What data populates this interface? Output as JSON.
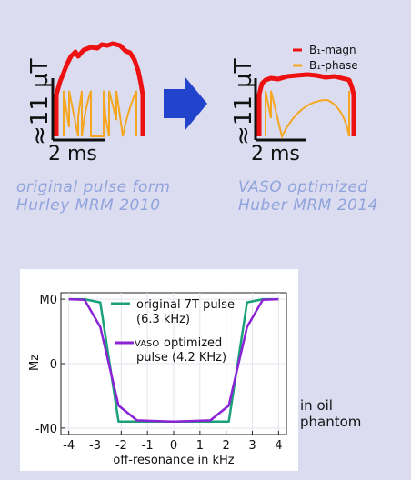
{
  "left_panel": {
    "scale_label": "≈11 µT",
    "time_label": "2 ms",
    "caption_line1": "original pulse form",
    "caption_line2": "Hurley MRM 2010"
  },
  "right_panel": {
    "scale_label": "≈11 µT",
    "time_label": "2 ms",
    "caption_line1": "VASO optimized",
    "caption_line2": "Huber MRM 2014",
    "legend": [
      {
        "label": "B₁-magn",
        "color": "#ee1111"
      },
      {
        "label": "B₁-phase",
        "color": "#f5a623"
      }
    ]
  },
  "arrow": {
    "color": "#2244cc",
    "icon": "right-arrow"
  },
  "note": {
    "line1": "in oil",
    "line2": "phantom"
  },
  "chart_data": {
    "type": "line",
    "xlabel": "off-resonance in kHz",
    "ylabel": "Mz",
    "xlim": [
      -4.3,
      4.3
    ],
    "ylim": [
      -1.1,
      1.1
    ],
    "xticks": [
      -4,
      -3,
      -2,
      -1,
      0,
      1,
      2,
      3,
      4
    ],
    "yticks": [
      {
        "value": 1,
        "label": "M0"
      },
      {
        "value": 0,
        "label": "0"
      },
      {
        "value": -1,
        "label": "-M0"
      }
    ],
    "grid": true,
    "legend_position": "top-center",
    "series": [
      {
        "name": "original 7T pulse (6.3 kHz)",
        "legend_line1": "original 7T pulse",
        "legend_line2": "(6.3 kHz)",
        "color": "#1aa07a",
        "x": [
          -4,
          -3.4,
          -2.8,
          -2.1,
          -1.4,
          -0.7,
          0,
          0.7,
          1.4,
          2.1,
          2.8,
          3.4,
          4
        ],
        "y": [
          1,
          1,
          0.95,
          -0.9,
          -0.9,
          -0.9,
          -0.9,
          -0.9,
          -0.9,
          -0.9,
          0.95,
          1,
          1
        ]
      },
      {
        "name": "VASO optimized pulse (4.2 KHz)",
        "legend_prefix": "VASO",
        "legend_line1": "optimized",
        "legend_line2": "pulse (4.2 KHz)",
        "color": "#8b22d6",
        "x": [
          -4,
          -3.4,
          -2.8,
          -2.1,
          -1.4,
          -0.7,
          0,
          0.7,
          1.4,
          2.1,
          2.8,
          3.4,
          4
        ],
        "y": [
          1,
          0.99,
          0.57,
          -0.65,
          -0.88,
          -0.89,
          -0.9,
          -0.89,
          -0.88,
          -0.65,
          0.57,
          0.99,
          1
        ]
      }
    ]
  }
}
